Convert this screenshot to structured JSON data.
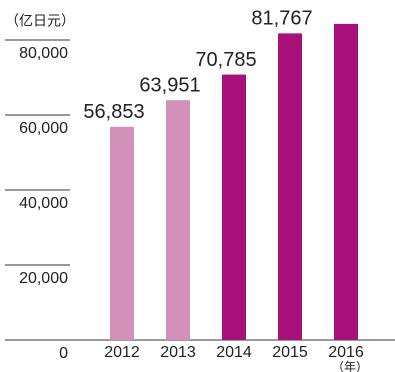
{
  "chart_data": {
    "type": "bar",
    "unit_label": "（亿日元）",
    "x_label": "（年）",
    "categories": [
      "2012",
      "2013",
      "2014",
      "2015",
      "2016"
    ],
    "values": [
      56853,
      63951,
      70785,
      81767,
      84300
    ],
    "value_labels": [
      "56,853",
      "63,951",
      "70,785",
      "81,767",
      null
    ],
    "colors": [
      "#d291b9",
      "#d291b9",
      "#a8117a",
      "#a8117a",
      "#a8117a"
    ],
    "ylim": [
      0,
      88000
    ],
    "yticks": [
      0,
      {
        "value": 20000,
        "label": "20,000"
      },
      {
        "value": 40000,
        "label": "40,000"
      },
      {
        "value": 60000,
        "label": "60,000"
      },
      {
        "value": 80000,
        "label": "80,000"
      }
    ]
  }
}
